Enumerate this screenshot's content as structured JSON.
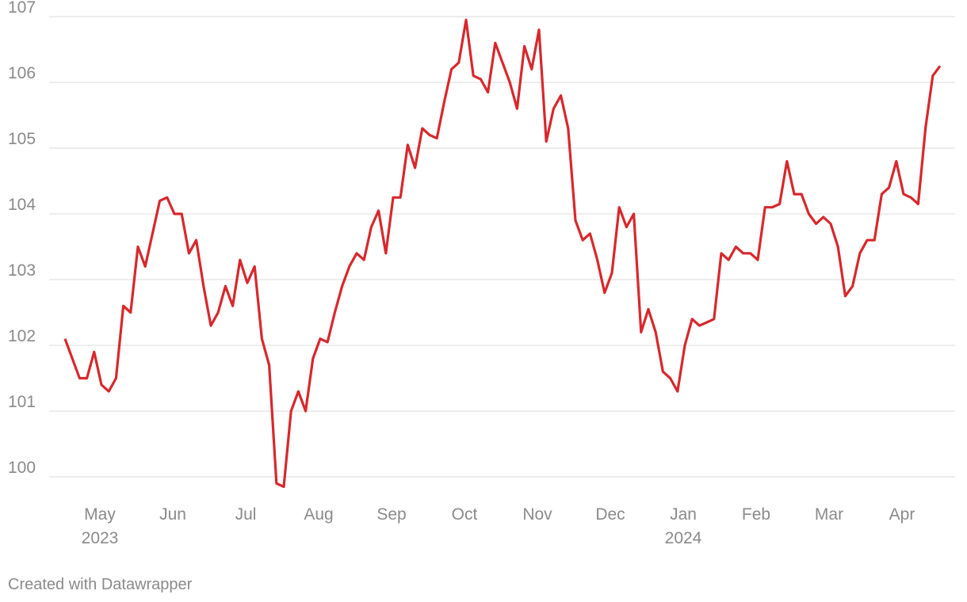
{
  "chart_data": {
    "type": "line",
    "footer": "Created with Datawrapper",
    "categories": [
      null,
      null,
      null,
      null,
      null,
      "May 2023",
      null,
      null,
      null,
      null,
      null,
      null,
      null,
      null,
      null,
      "Jun",
      null,
      null,
      null,
      null,
      null,
      null,
      null,
      null,
      null,
      "Jul",
      null,
      null,
      null,
      null,
      null,
      null,
      null,
      null,
      null,
      "Aug",
      null,
      null,
      null,
      null,
      null,
      null,
      null,
      null,
      null,
      "Sep",
      null,
      null,
      null,
      null,
      null,
      null,
      null,
      null,
      null,
      "Oct",
      null,
      null,
      null,
      null,
      null,
      null,
      null,
      null,
      null,
      "Nov",
      null,
      null,
      null,
      null,
      null,
      null,
      null,
      null,
      null,
      "Dec",
      null,
      null,
      null,
      null,
      null,
      null,
      null,
      null,
      null,
      "Jan 2024",
      null,
      null,
      null,
      null,
      null,
      null,
      null,
      null,
      null,
      "Feb",
      null,
      null,
      null,
      null,
      null,
      null,
      null,
      null,
      null,
      "Mar",
      null,
      null,
      null,
      null,
      null,
      null,
      null,
      null,
      null,
      "Apr",
      null,
      null,
      null,
      null,
      null
    ],
    "series": [
      {
        "color": "#d7282c",
        "values": [
          102.1,
          101.8,
          101.5,
          101.5,
          101.9,
          101.4,
          101.3,
          101.5,
          102.6,
          102.5,
          103.5,
          103.2,
          103.7,
          104.2,
          104.25,
          104.0,
          104.0,
          103.4,
          103.6,
          102.9,
          102.3,
          102.5,
          102.9,
          102.6,
          103.3,
          102.95,
          103.2,
          102.1,
          101.7,
          99.9,
          99.85,
          101.0,
          101.3,
          101.0,
          101.8,
          102.1,
          102.05,
          102.5,
          102.9,
          103.2,
          103.4,
          103.3,
          103.8,
          104.05,
          103.4,
          104.25,
          104.25,
          105.05,
          104.7,
          105.3,
          105.2,
          105.15,
          105.7,
          106.2,
          106.3,
          106.95,
          106.1,
          106.05,
          105.85,
          106.6,
          106.3,
          106.0,
          105.6,
          106.55,
          106.2,
          106.8,
          105.1,
          105.6,
          105.8,
          105.3,
          103.9,
          103.6,
          103.7,
          103.3,
          102.8,
          103.1,
          104.1,
          103.8,
          104.0,
          102.2,
          102.55,
          102.2,
          101.6,
          101.5,
          101.3,
          102.0,
          102.4,
          102.3,
          102.35,
          102.4,
          103.4,
          103.3,
          103.5,
          103.4,
          103.4,
          103.3,
          104.1,
          104.1,
          104.15,
          104.8,
          104.3,
          104.3,
          104.0,
          103.85,
          103.95,
          103.85,
          103.5,
          102.75,
          102.9,
          103.4,
          103.6,
          103.6,
          104.3,
          104.4,
          104.8,
          104.3,
          104.25,
          104.15,
          105.3,
          106.1,
          106.25
        ]
      }
    ],
    "ylim": [
      100,
      107
    ],
    "yticks": [
      100,
      101,
      102,
      103,
      104,
      105,
      106,
      107
    ],
    "grid": true
  }
}
